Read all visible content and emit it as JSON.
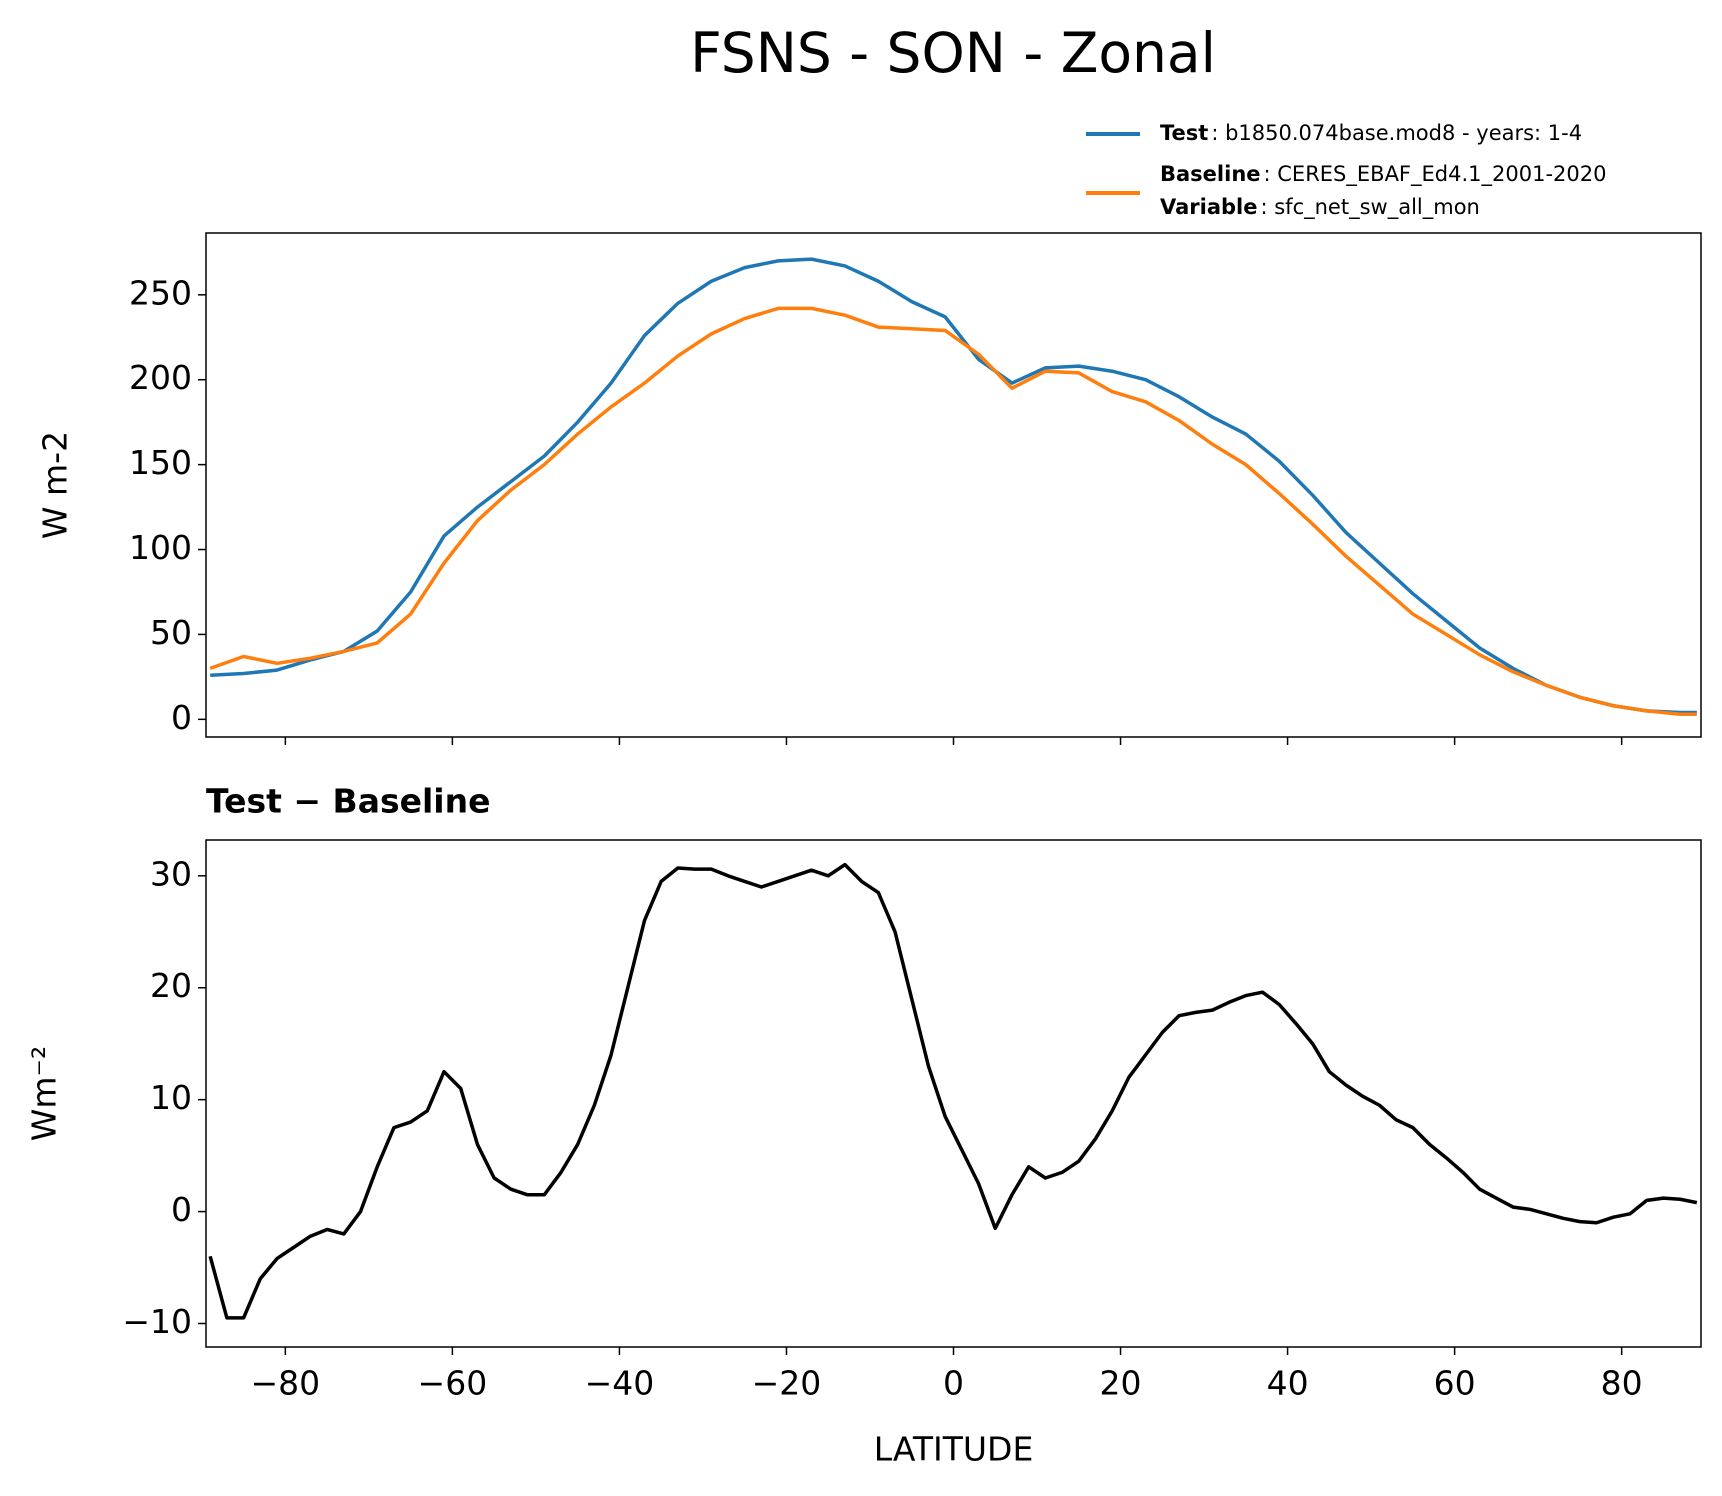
{
  "chart_data": [
    {
      "type": "line",
      "title": "FSNS - SON - Zonal",
      "ylabel": "W m-2",
      "x": [
        -89,
        -85,
        -81,
        -77,
        -73,
        -69,
        -65,
        -61,
        -57,
        -53,
        -49,
        -45,
        -41,
        -37,
        -33,
        -29,
        -25,
        -21,
        -17,
        -13,
        -9,
        -5,
        -1,
        3,
        7,
        11,
        15,
        19,
        23,
        27,
        31,
        35,
        39,
        43,
        47,
        51,
        55,
        59,
        63,
        67,
        71,
        75,
        79,
        83,
        87,
        89
      ],
      "series": [
        {
          "name": "Test",
          "label": ": b1850.074base.mod8 - years: 1-4",
          "color": "#1f77b4",
          "values": [
            26,
            27,
            29,
            35,
            40,
            52,
            75,
            108,
            125,
            140,
            155,
            175,
            198,
            226,
            245,
            258,
            266,
            270,
            271,
            267,
            258,
            246,
            237,
            212,
            198,
            207,
            208,
            205,
            200,
            190,
            178,
            168,
            152,
            132,
            110,
            92,
            74,
            58,
            42,
            30,
            20,
            13,
            8,
            5,
            4,
            4
          ]
        },
        {
          "name": "Baseline",
          "label": ": CERES_EBAF_Ed4.1_2001-2020",
          "color": "#ff7f0e",
          "values": [
            30,
            37,
            33,
            36,
            40,
            45,
            62,
            92,
            117,
            135,
            150,
            168,
            184,
            198,
            214,
            227,
            236,
            242,
            242,
            238,
            231,
            230,
            229,
            215,
            195,
            205,
            204,
            193,
            187,
            176,
            162,
            150,
            133,
            115,
            96,
            79,
            62,
            50,
            38,
            28,
            20,
            13,
            8,
            5,
            3,
            3
          ]
        }
      ],
      "legend_note": {
        "name": "Variable",
        "label": ": sfc_net_sw_all_mon"
      },
      "xlim": [
        -89.5,
        89.5
      ],
      "xticks": [
        -80,
        -60,
        -40,
        -20,
        0,
        20,
        40,
        60,
        80
      ],
      "ylim": [
        -10.4,
        286.4
      ],
      "yticks": [
        0,
        50,
        100,
        150,
        200,
        250
      ]
    },
    {
      "type": "line",
      "title": "Test − Baseline",
      "xlabel": "LATITUDE",
      "ylabel": "Wm⁻²",
      "color": "#000000",
      "x": [
        -89,
        -87,
        -85,
        -83,
        -81,
        -79,
        -77,
        -75,
        -73,
        -71,
        -69,
        -67,
        -65,
        -63,
        -61,
        -59,
        -57,
        -55,
        -53,
        -51,
        -49,
        -47,
        -45,
        -43,
        -41,
        -39,
        -37,
        -35,
        -33,
        -31,
        -29,
        -27,
        -25,
        -23,
        -21,
        -19,
        -17,
        -15,
        -13,
        -11,
        -9,
        -7,
        -5,
        -3,
        -1,
        1,
        3,
        5,
        7,
        9,
        11,
        13,
        15,
        17,
        19,
        21,
        23,
        25,
        27,
        29,
        31,
        33,
        35,
        37,
        39,
        41,
        43,
        45,
        47,
        49,
        51,
        53,
        55,
        57,
        59,
        61,
        63,
        65,
        67,
        69,
        71,
        73,
        75,
        77,
        79,
        81,
        83,
        85,
        87,
        89
      ],
      "values": [
        -4,
        -9.5,
        -9.5,
        -6,
        -4.2,
        -3.2,
        -2.2,
        -1.6,
        -2,
        0,
        4,
        7.5,
        8,
        9,
        12.5,
        11,
        6,
        3,
        2,
        1.5,
        1.5,
        3.5,
        6,
        9.5,
        14,
        20,
        26,
        29.5,
        30.7,
        30.6,
        30.6,
        30,
        29.5,
        29,
        29.5,
        30,
        30.5,
        30,
        31,
        29.5,
        28.5,
        25,
        19,
        13,
        8.5,
        5.5,
        2.5,
        -1.5,
        1.5,
        4,
        3,
        3.5,
        4.5,
        6.5,
        9,
        12,
        14,
        16,
        17.5,
        17.8,
        18,
        18.7,
        19.3,
        19.6,
        18.5,
        16.8,
        15,
        12.5,
        11.3,
        10.3,
        9.5,
        8.2,
        7.5,
        6,
        4.8,
        3.5,
        2,
        1.2,
        0.4,
        0.2,
        -0.2,
        -0.6,
        -0.9,
        -1,
        -0.5,
        -0.2,
        1,
        1.2,
        1.1,
        0.8
      ],
      "xlim": [
        -89.5,
        89.5
      ],
      "xticks": [
        {
          "value": -80,
          "label": "−80"
        },
        {
          "value": -60,
          "label": "−60"
        },
        {
          "value": -40,
          "label": "−40"
        },
        {
          "value": -20,
          "label": "−20"
        },
        0,
        20,
        40,
        60,
        80
      ],
      "ylim": [
        -12.1,
        33.2
      ],
      "yticks": [
        {
          "value": -10,
          "label": "−10"
        },
        0,
        10,
        20,
        30
      ]
    }
  ]
}
